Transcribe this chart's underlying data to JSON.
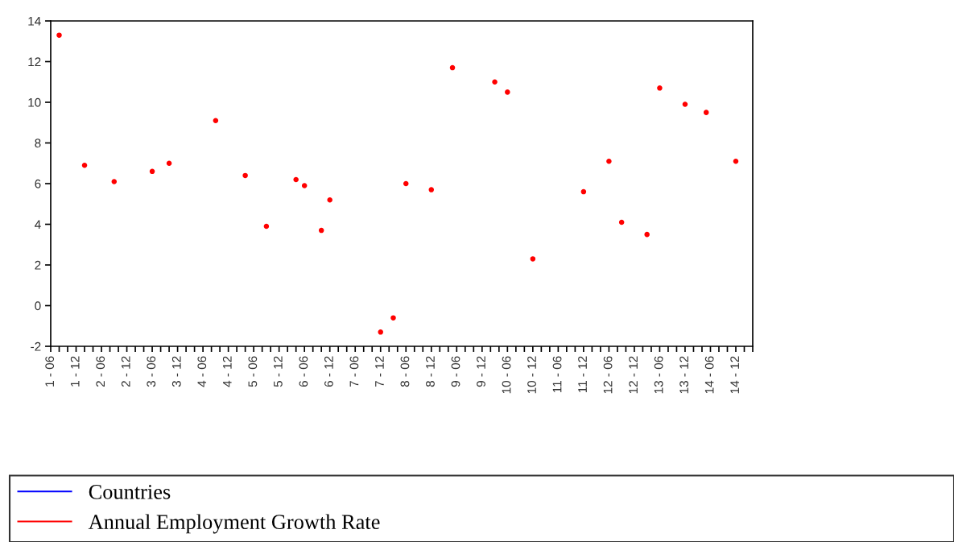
{
  "chart_data": {
    "type": "scatter",
    "categories": [
      "1 - 06",
      null,
      null,
      null,
      null,
      null,
      "1 - 12",
      null,
      null,
      null,
      null,
      null,
      "2 - 06",
      null,
      null,
      null,
      null,
      null,
      "2 - 12",
      null,
      null,
      null,
      null,
      null,
      "3 - 06",
      null,
      null,
      null,
      null,
      null,
      "3 - 12",
      null,
      null,
      null,
      null,
      null,
      "4 - 06",
      null,
      null,
      null,
      null,
      null,
      "4 - 12",
      null,
      null,
      null,
      null,
      null,
      "5 - 06",
      null,
      null,
      null,
      null,
      null,
      "5 - 12",
      null,
      null,
      null,
      null,
      null,
      "6 - 06",
      null,
      null,
      null,
      null,
      null,
      "6 - 12",
      null,
      null,
      null,
      null,
      null,
      "7 - 06",
      null,
      null,
      null,
      null,
      null,
      "7 - 12",
      null,
      null,
      null,
      null,
      null,
      "8 - 06",
      null,
      null,
      null,
      null,
      null,
      "8 - 12",
      null,
      null,
      null,
      null,
      null,
      "9 - 06",
      null,
      null,
      null,
      null,
      null,
      "9 - 12",
      null,
      null,
      null,
      null,
      null,
      "10 - 06",
      null,
      null,
      null,
      null,
      null,
      "10 - 12",
      null,
      null,
      null,
      null,
      null,
      "11 - 06",
      null,
      null,
      null,
      null,
      null,
      "11 - 12",
      null,
      null,
      null,
      null,
      null,
      "12 - 06",
      null,
      null,
      null,
      null,
      null,
      "12 - 12",
      null,
      null,
      null,
      null,
      null,
      "13 - 06",
      null,
      null,
      null,
      null,
      null,
      "13 - 12",
      null,
      null,
      null,
      null,
      null,
      "14 - 06",
      null,
      null,
      null,
      null,
      null,
      "14 - 12",
      null,
      null,
      null,
      null
    ],
    "series": [
      {
        "name": "Countries",
        "color": "#0000ff",
        "type": "line",
        "values": [
          null,
          null,
          null,
          null,
          null,
          null,
          null,
          null,
          null,
          null,
          null,
          null,
          null,
          null,
          null,
          null,
          null,
          null,
          null,
          null,
          null,
          null,
          null,
          null,
          null,
          null,
          null,
          null,
          null,
          null,
          null,
          null,
          null,
          null,
          null,
          null,
          null,
          null,
          null,
          null,
          null,
          null,
          null,
          null,
          null,
          null,
          null,
          null,
          null,
          null,
          null,
          null,
          null,
          null,
          null,
          null,
          null,
          null,
          null,
          null,
          null,
          null,
          null,
          null,
          null,
          null,
          null,
          null,
          null,
          null,
          null,
          null,
          null,
          null,
          null,
          null,
          null,
          null,
          null,
          null,
          null,
          null,
          null,
          null,
          null,
          null,
          null,
          null,
          null,
          null,
          null,
          null,
          null,
          null,
          null,
          null,
          null,
          null,
          null,
          null,
          null,
          null,
          null,
          null,
          null,
          null,
          null,
          null,
          null,
          null,
          null,
          null,
          null,
          null,
          null,
          null,
          null,
          null,
          null,
          null,
          null,
          null,
          null,
          null,
          null,
          null,
          null,
          null,
          null,
          null,
          null,
          null,
          null,
          null,
          null,
          null,
          null,
          null,
          null,
          null,
          null,
          null,
          null,
          null,
          null,
          null,
          null,
          null,
          null,
          null,
          null,
          null,
          null,
          null,
          null,
          null,
          null,
          null,
          null,
          null,
          null,
          null,
          null,
          null,
          null,
          null,
          null
        ]
      },
      {
        "name": "Annual Employment Growth Rate",
        "color": "#ff0000",
        "values": [
          null,
          null,
          13.3,
          null,
          null,
          null,
          null,
          null,
          6.9,
          null,
          null,
          null,
          null,
          null,
          null,
          6.1,
          null,
          null,
          null,
          null,
          null,
          null,
          null,
          null,
          6.6,
          null,
          null,
          null,
          7.0,
          null,
          null,
          null,
          null,
          null,
          null,
          null,
          null,
          null,
          null,
          9.1,
          null,
          null,
          null,
          null,
          null,
          null,
          6.4,
          null,
          null,
          null,
          null,
          3.9,
          null,
          null,
          null,
          null,
          null,
          null,
          6.2,
          null,
          5.9,
          null,
          null,
          null,
          3.7,
          null,
          5.2,
          null,
          null,
          null,
          null,
          null,
          null,
          null,
          null,
          null,
          null,
          null,
          -1.3,
          null,
          null,
          -0.6,
          null,
          null,
          6.0,
          null,
          null,
          null,
          null,
          null,
          5.7,
          null,
          null,
          null,
          null,
          11.7,
          null,
          null,
          null,
          null,
          null,
          null,
          null,
          null,
          null,
          11.0,
          null,
          null,
          10.5,
          null,
          null,
          null,
          null,
          null,
          2.3,
          null,
          null,
          null,
          null,
          null,
          null,
          null,
          null,
          null,
          null,
          null,
          5.6,
          null,
          null,
          null,
          null,
          null,
          7.1,
          null,
          null,
          4.1,
          null,
          null,
          null,
          null,
          null,
          3.5,
          null,
          null,
          10.7,
          null,
          null,
          null,
          null,
          null,
          9.9,
          null,
          null,
          null,
          null,
          9.5,
          null,
          null,
          null,
          null,
          null,
          null,
          7.1,
          null,
          null,
          null,
          null
        ]
      }
    ],
    "ylim": [
      -2,
      14
    ],
    "yticks": [
      -2,
      0,
      2,
      4,
      6,
      8,
      10,
      12,
      14
    ],
    "marker": "circle",
    "legend": "bottom",
    "grid": false
  }
}
